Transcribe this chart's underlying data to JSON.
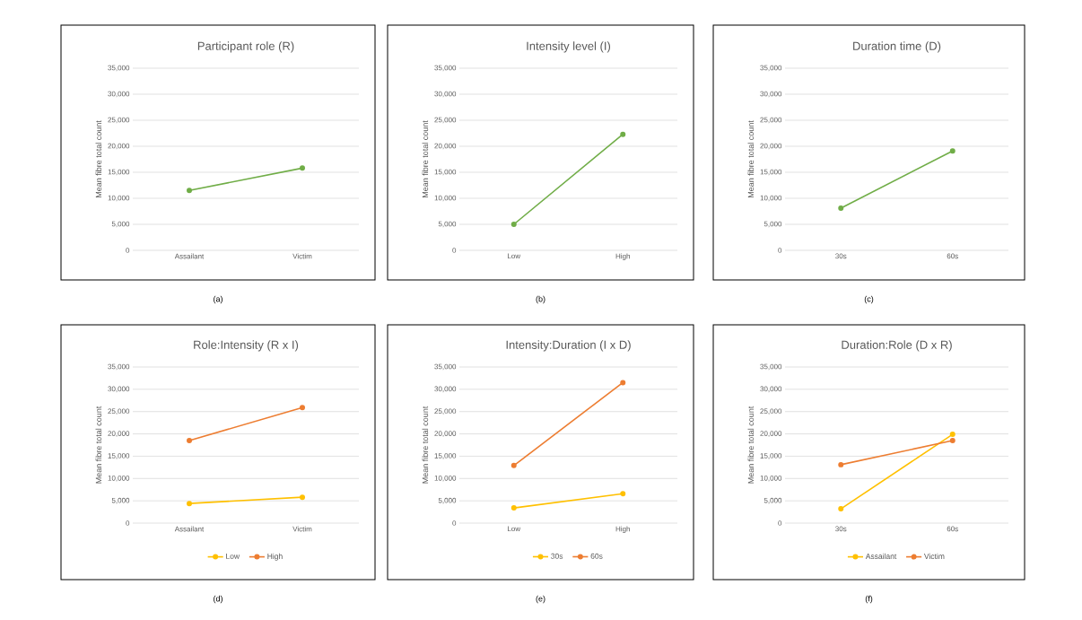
{
  "chart_data": [
    {
      "type": "line",
      "title": "Participant role (R)",
      "ylabel": "Mean fibre total count",
      "categories": [
        "Assailant",
        "Victim"
      ],
      "values": [
        11500,
        15800
      ],
      "color": "#70ad47",
      "marker": "circle",
      "grid": "y",
      "ylim": [
        0,
        35000
      ],
      "yticks": [
        0,
        {
          "value": 5000,
          "label": "5,000"
        },
        {
          "value": 10000,
          "label": "10,000"
        },
        {
          "value": 15000,
          "label": "15,000"
        },
        {
          "value": 20000,
          "label": "20,000"
        },
        {
          "value": 25000,
          "label": "25,000"
        },
        {
          "value": 30000,
          "label": "30,000"
        },
        {
          "value": 35000,
          "label": "35,000"
        }
      ],
      "annotations": [
        "(a)"
      ]
    },
    {
      "type": "line",
      "title": "Intensity level (I)",
      "ylabel": "Mean fibre total count",
      "categories": [
        "Low",
        "High"
      ],
      "values": [
        5000,
        22300
      ],
      "color": "#70ad47",
      "marker": "circle",
      "grid": "y",
      "ylim": [
        0,
        35000
      ],
      "yticks": [
        0,
        {
          "value": 5000,
          "label": "5,000"
        },
        {
          "value": 10000,
          "label": "10,000"
        },
        {
          "value": 15000,
          "label": "15,000"
        },
        {
          "value": 20000,
          "label": "20,000"
        },
        {
          "value": 25000,
          "label": "25,000"
        },
        {
          "value": 30000,
          "label": "30,000"
        },
        {
          "value": 35000,
          "label": "35,000"
        }
      ],
      "annotations": [
        "(b)"
      ]
    },
    {
      "type": "line",
      "title": "Duration time (D)",
      "ylabel": "Mean fibre total count",
      "categories": [
        "30s",
        "60s"
      ],
      "values": [
        8100,
        19100
      ],
      "color": "#70ad47",
      "marker": "circle",
      "grid": "y",
      "ylim": [
        0,
        35000
      ],
      "yticks": [
        0,
        {
          "value": 5000,
          "label": "5,000"
        },
        {
          "value": 10000,
          "label": "10,000"
        },
        {
          "value": 15000,
          "label": "15,000"
        },
        {
          "value": 20000,
          "label": "20,000"
        },
        {
          "value": 25000,
          "label": "25,000"
        },
        {
          "value": 30000,
          "label": "30,000"
        },
        {
          "value": 35000,
          "label": "35,000"
        }
      ],
      "annotations": [
        "(c)"
      ]
    },
    {
      "type": "line",
      "title": "Role:Intensity (R x I)",
      "ylabel": "Mean fibre total count",
      "categories": [
        "Assailant",
        "Victim"
      ],
      "series": [
        {
          "name": "Low",
          "color": "#ffc000",
          "values": [
            4400,
            5800
          ]
        },
        {
          "name": "High",
          "color": "#ed7d31",
          "values": [
            18500,
            25900
          ]
        }
      ],
      "marker": "circle",
      "grid": "y",
      "legend": "bottom",
      "ylim": [
        0,
        35000
      ],
      "yticks": [
        0,
        {
          "value": 5000,
          "label": "5,000"
        },
        {
          "value": 10000,
          "label": "10,000"
        },
        {
          "value": 15000,
          "label": "15,000"
        },
        {
          "value": 20000,
          "label": "20,000"
        },
        {
          "value": 25000,
          "label": "25,000"
        },
        {
          "value": 30000,
          "label": "30,000"
        },
        {
          "value": 35000,
          "label": "35,000"
        }
      ],
      "annotations": [
        "(d)"
      ]
    },
    {
      "type": "line",
      "title": "Intensity:Duration (I x D)",
      "ylabel": "Mean fibre total count",
      "categories": [
        "Low",
        "High"
      ],
      "series": [
        {
          "name": "30s",
          "color": "#ffc000",
          "values": [
            3400,
            6600
          ]
        },
        {
          "name": "60s",
          "color": "#ed7d31",
          "values": [
            12900,
            31500
          ]
        }
      ],
      "marker": "circle",
      "grid": "y",
      "legend": "bottom",
      "ylim": [
        0,
        35000
      ],
      "yticks": [
        0,
        {
          "value": 5000,
          "label": "5,000"
        },
        {
          "value": 10000,
          "label": "10,000"
        },
        {
          "value": 15000,
          "label": "15,000"
        },
        {
          "value": 20000,
          "label": "20,000"
        },
        {
          "value": 25000,
          "label": "25,000"
        },
        {
          "value": 30000,
          "label": "30,000"
        },
        {
          "value": 35000,
          "label": "35,000"
        }
      ],
      "annotations": [
        "(e)"
      ]
    },
    {
      "type": "line",
      "title": "Duration:Role (D x R)",
      "ylabel": "Mean fibre total count",
      "categories": [
        "30s",
        "60s"
      ],
      "series": [
        {
          "name": "Assailant",
          "color": "#ffc000",
          "values": [
            3200,
            19900
          ]
        },
        {
          "name": "Victim",
          "color": "#ed7d31",
          "values": [
            13100,
            18500
          ]
        }
      ],
      "marker": "circle",
      "grid": "y",
      "legend": "bottom",
      "ylim": [
        0,
        35000
      ],
      "yticks": [
        0,
        {
          "value": 5000,
          "label": "5,000"
        },
        {
          "value": 10000,
          "label": "10,000"
        },
        {
          "value": 15000,
          "label": "15,000"
        },
        {
          "value": 20000,
          "label": "20,000"
        },
        {
          "value": 25000,
          "label": "25,000"
        },
        {
          "value": 30000,
          "label": "30,000"
        },
        {
          "value": 35000,
          "label": "35,000"
        }
      ],
      "annotations": [
        "(f)"
      ]
    }
  ]
}
